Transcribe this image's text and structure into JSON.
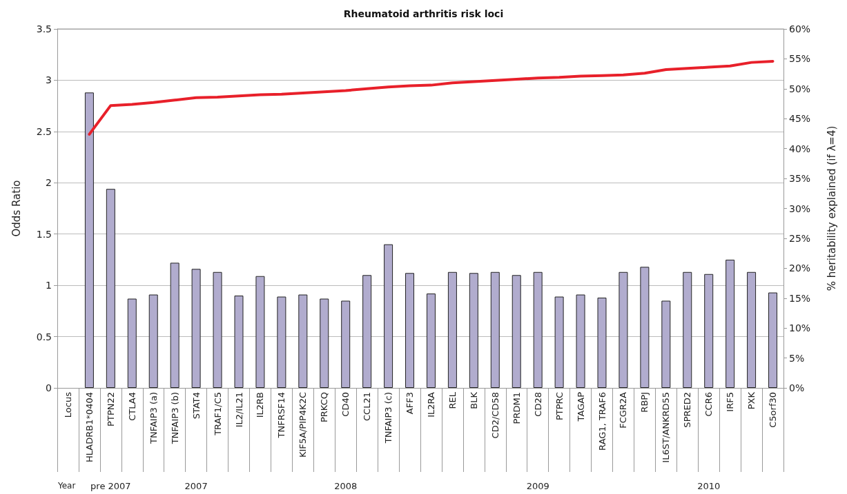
{
  "chart_data": {
    "type": "bar",
    "title": "Rheumatoid arthritis risk loci",
    "ylabel": "Odds Ratio",
    "y2label": "% heritability explained (if λ=4)",
    "categories": [
      "Locus",
      "HLADRB1*0404",
      "PTPN22",
      "CTLA4",
      "TNFAIP3 (a)",
      "TNFAIP3 (b)",
      "STAT4",
      "TRAF1/C5",
      "IL2/IL21",
      "IL2RB",
      "TNFRSF14",
      "KIF5A/PIP4K2C",
      "PRKCQ",
      "CD40",
      "CCL21",
      "TNFAIP3 (c)",
      "AFF3",
      "IL2RA",
      "REL",
      "BLK",
      "CD2/CD58",
      "PRDM1",
      "CD28",
      "PTPRC",
      "TAGAP",
      "RAG1, TRAF6",
      "FCGR2A",
      "RBPJ",
      "IL6ST/ANKRD55",
      "SPRED2",
      "CCR6",
      "IRF5",
      "PXK",
      "C5orf30"
    ],
    "series": [
      {
        "color": "#b1acce",
        "values": [
          null,
          2.88,
          1.94,
          0.87,
          0.91,
          1.22,
          1.16,
          1.13,
          0.9,
          1.09,
          0.89,
          0.91,
          0.87,
          0.85,
          1.1,
          1.4,
          1.12,
          0.92,
          1.13,
          1.12,
          1.13,
          1.1,
          1.13,
          0.89,
          0.91,
          0.88,
          1.13,
          1.18,
          0.85,
          1.13,
          1.11,
          1.25,
          1.13,
          0.93
        ]
      },
      {
        "type": "line",
        "axis": "y2",
        "color": "#e8202a",
        "values": [
          null,
          42.4,
          47.2,
          47.4,
          47.7,
          48.1,
          48.5,
          48.6,
          48.8,
          49.0,
          49.1,
          49.3,
          49.5,
          49.7,
          50.0,
          50.3,
          50.5,
          50.6,
          51.0,
          51.2,
          51.4,
          51.6,
          51.8,
          51.9,
          52.1,
          52.2,
          52.3,
          52.6,
          53.2,
          53.4,
          53.6,
          53.8,
          54.4,
          54.6
        ]
      }
    ],
    "ylim": [
      0,
      3.5
    ],
    "yticks": [
      0,
      0.5,
      1,
      1.5,
      2,
      2.5,
      3,
      3.5
    ],
    "y2lim": [
      0,
      60
    ],
    "y2ticks": [
      {
        "value": 0,
        "label": "0%"
      },
      {
        "value": 5,
        "label": "5%"
      },
      {
        "value": 10,
        "label": "10%"
      },
      {
        "value": 15,
        "label": "15%"
      },
      {
        "value": 20,
        "label": "20%"
      },
      {
        "value": 25,
        "label": "25%"
      },
      {
        "value": 30,
        "label": "30%"
      },
      {
        "value": 35,
        "label": "35%"
      },
      {
        "value": 40,
        "label": "40%"
      },
      {
        "value": 45,
        "label": "45%"
      },
      {
        "value": 50,
        "label": "50%"
      },
      {
        "value": 55,
        "label": "55%"
      },
      {
        "value": 60,
        "label": "60%"
      }
    ],
    "grid": "y",
    "marker": "none",
    "line_style": "solid",
    "annotations": [
      "Year",
      "pre 2007",
      "2007",
      "2008",
      "2009",
      "2010"
    ]
  }
}
